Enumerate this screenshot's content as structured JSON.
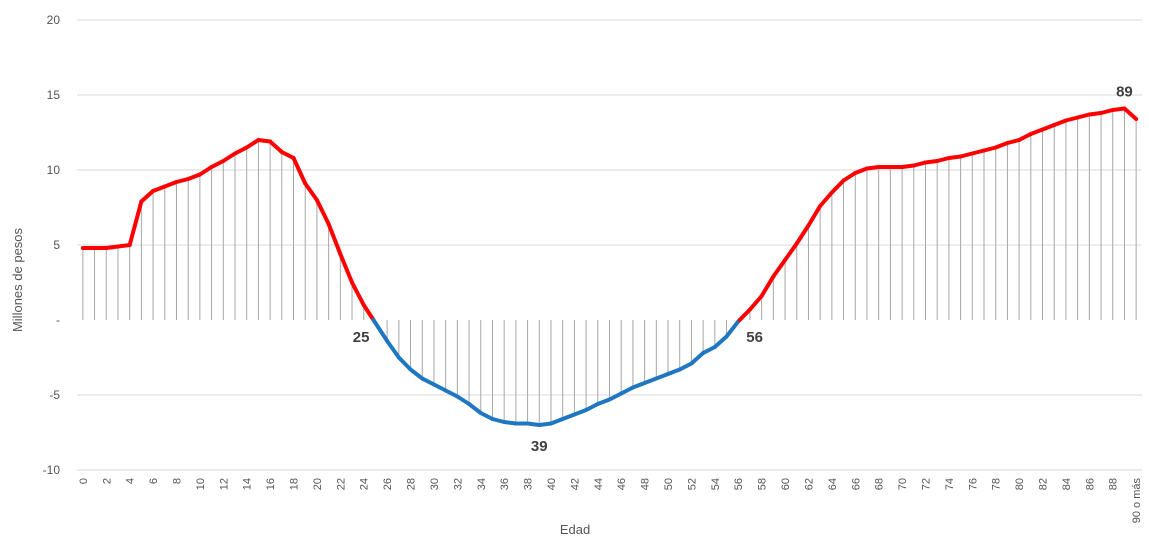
{
  "chart_data": {
    "type": "line",
    "xlabel": "Edad",
    "ylabel": "Millones de pesos",
    "ylim": [
      -10,
      20
    ],
    "yticks": [
      {
        "value": 20,
        "label": "20"
      },
      {
        "value": 15,
        "label": "15"
      },
      {
        "value": 10,
        "label": "10"
      },
      {
        "value": 5,
        "label": "5"
      },
      {
        "value": 0,
        "label": "-"
      },
      {
        "value": -5,
        "label": "-5"
      },
      {
        "value": -10,
        "label": "-10"
      }
    ],
    "x_tick_labels": [
      "0",
      "2",
      "4",
      "6",
      "8",
      "10",
      "12",
      "14",
      "16",
      "18",
      "20",
      "22",
      "24",
      "26",
      "28",
      "30",
      "32",
      "34",
      "36",
      "38",
      "40",
      "42",
      "44",
      "46",
      "48",
      "50",
      "52",
      "54",
      "56",
      "58",
      "60",
      "62",
      "64",
      "66",
      "68",
      "70",
      "72",
      "74",
      "76",
      "78",
      "80",
      "82",
      "84",
      "86",
      "88",
      "90 o más"
    ],
    "x": [
      "0",
      "1",
      "2",
      "3",
      "4",
      "5",
      "6",
      "7",
      "8",
      "9",
      "10",
      "11",
      "12",
      "13",
      "14",
      "15",
      "16",
      "17",
      "18",
      "19",
      "20",
      "21",
      "22",
      "23",
      "24",
      "25",
      "26",
      "27",
      "28",
      "29",
      "30",
      "31",
      "32",
      "33",
      "34",
      "35",
      "36",
      "37",
      "38",
      "39",
      "40",
      "41",
      "42",
      "43",
      "44",
      "45",
      "46",
      "47",
      "48",
      "49",
      "50",
      "51",
      "52",
      "53",
      "54",
      "55",
      "56",
      "57",
      "58",
      "59",
      "60",
      "61",
      "62",
      "63",
      "64",
      "65",
      "66",
      "67",
      "68",
      "69",
      "70",
      "71",
      "72",
      "73",
      "74",
      "75",
      "76",
      "77",
      "78",
      "79",
      "80",
      "81",
      "82",
      "83",
      "84",
      "85",
      "86",
      "87",
      "88",
      "89",
      "90 o más"
    ],
    "values": [
      4.8,
      4.8,
      4.8,
      4.9,
      5.0,
      7.9,
      8.6,
      8.9,
      9.2,
      9.4,
      9.7,
      10.2,
      10.6,
      11.1,
      11.5,
      12.0,
      11.9,
      11.2,
      10.8,
      9.1,
      8.0,
      6.4,
      4.4,
      2.5,
      1.0,
      -0.2,
      -1.4,
      -2.5,
      -3.3,
      -3.9,
      -4.3,
      -4.7,
      -5.1,
      -5.6,
      -6.2,
      -6.6,
      -6.8,
      -6.9,
      -6.9,
      -7.0,
      -6.9,
      -6.6,
      -6.3,
      -6.0,
      -5.6,
      -5.3,
      -4.9,
      -4.5,
      -4.2,
      -3.9,
      -3.6,
      -3.3,
      -2.9,
      -2.2,
      -1.8,
      -1.1,
      -0.1,
      0.7,
      1.6,
      2.9,
      4.0,
      5.1,
      6.3,
      7.6,
      8.5,
      9.3,
      9.8,
      10.1,
      10.2,
      10.2,
      10.2,
      10.3,
      10.5,
      10.6,
      10.8,
      10.9,
      11.1,
      11.3,
      11.5,
      11.8,
      12.0,
      12.4,
      12.7,
      13.0,
      13.3,
      13.5,
      13.7,
      13.8,
      14.0,
      14.1,
      13.4
    ],
    "colors": {
      "positive": "#ff0000",
      "negative": "#1f77c2",
      "stem": "#a6a6a6",
      "grid": "#d9d9d9"
    },
    "annotations": [
      {
        "label": "25",
        "x": 25,
        "y": 0
      },
      {
        "label": "39",
        "x": 39,
        "y": -7.0
      },
      {
        "label": "56",
        "x": 56,
        "y": 0
      },
      {
        "label": "89",
        "x": 89,
        "y": 14.1
      }
    ],
    "grid": true
  }
}
